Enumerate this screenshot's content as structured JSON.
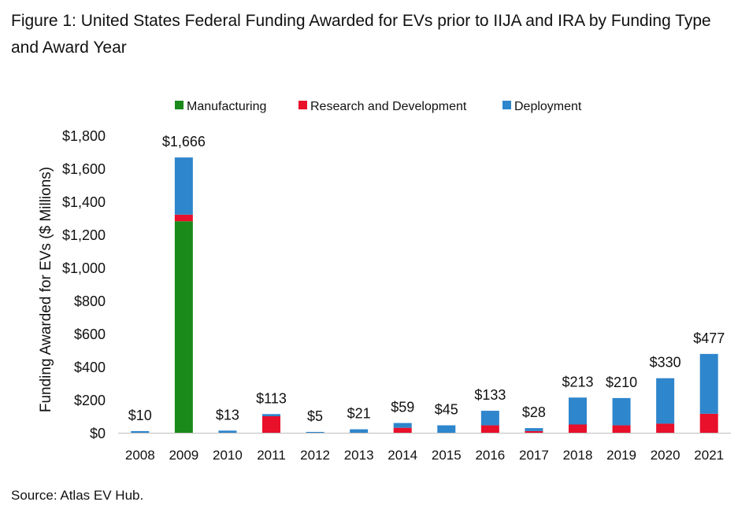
{
  "figure_title": "Figure 1: United States Federal Funding Awarded for EVs prior to IIJA and IRA by Funding Type and Award Year",
  "source_note": "Source: Atlas EV Hub.",
  "chart_data": {
    "type": "bar",
    "stacked": true,
    "title": "United States Federal Funding Awarded for EVs prior to IIJA and IRA by Funding Type and Award Year",
    "xlabel": "",
    "ylabel": "Funding Awarded for EVs ($ Millions)",
    "ylim": [
      0,
      1800
    ],
    "y_ticks": [
      0,
      200,
      400,
      600,
      800,
      1000,
      1200,
      1400,
      1600,
      1800
    ],
    "y_tick_labels": [
      "$0",
      "$200",
      "$400",
      "$600",
      "$800",
      "$1,000",
      "$1,200",
      "$1,400",
      "$1,600",
      "$1,800"
    ],
    "grid": false,
    "legend_position": "top",
    "categories": [
      "2008",
      "2009",
      "2010",
      "2011",
      "2012",
      "2013",
      "2014",
      "2015",
      "2016",
      "2017",
      "2018",
      "2019",
      "2020",
      "2021"
    ],
    "series": [
      {
        "name": "Manufacturing",
        "color": "#1a8a1a",
        "values": [
          0,
          1280,
          0,
          0,
          0,
          0,
          0,
          0,
          0,
          0,
          0,
          0,
          0,
          0
        ]
      },
      {
        "name": "Research and Development",
        "color": "#e8102a",
        "values": [
          0,
          40,
          0,
          100,
          0,
          0,
          30,
          0,
          45,
          10,
          50,
          45,
          55,
          115
        ]
      },
      {
        "name": "Deployment",
        "color": "#2e86cc",
        "values": [
          10,
          346,
          13,
          13,
          5,
          21,
          29,
          45,
          88,
          18,
          163,
          165,
          275,
          362
        ]
      }
    ],
    "totals": [
      10,
      1666,
      13,
      113,
      5,
      21,
      59,
      45,
      133,
      28,
      213,
      210,
      330,
      477
    ],
    "total_labels": [
      "$10",
      "$1,666",
      "$13",
      "$113",
      "$5",
      "$21",
      "$59",
      "$45",
      "$133",
      "$28",
      "$213",
      "$210",
      "$330",
      "$477"
    ]
  }
}
